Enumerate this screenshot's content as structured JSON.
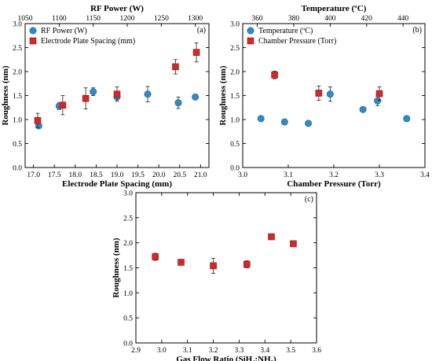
{
  "chart_data": [
    {
      "id": "a",
      "type": "scatter",
      "panel_label": "(a)",
      "ylabel": "Roughness (nm)",
      "ylim": [
        0.0,
        3.0
      ],
      "yticks": [
        0.0,
        0.5,
        1.0,
        1.5,
        2.0,
        2.5,
        3.0
      ],
      "bottom_axis": {
        "label": "Electrode Plate Spacing (mm)",
        "range": [
          16.8,
          21.2
        ],
        "ticks": [
          17.0,
          17.5,
          18.0,
          18.5,
          19.0,
          19.5,
          20.0,
          20.5,
          21.0
        ]
      },
      "top_axis": {
        "label": "RF Power (W)",
        "range": [
          1050,
          1320
        ],
        "ticks": [
          1050,
          1100,
          1150,
          1200,
          1250,
          1300
        ]
      },
      "legend_position": "top-left",
      "series": [
        {
          "name": "RF Power (W)",
          "axis": "top",
          "marker": "circle",
          "color": "#2e8bcb",
          "points": [
            {
              "x": 1070,
              "y": 0.87,
              "err": 0.04
            },
            {
              "x": 1100,
              "y": 1.28,
              "err": 0.07
            },
            {
              "x": 1150,
              "y": 1.58,
              "err": 0.08
            },
            {
              "x": 1185,
              "y": 1.47,
              "err": 0.04
            },
            {
              "x": 1230,
              "y": 1.53,
              "err": 0.16
            },
            {
              "x": 1275,
              "y": 1.35,
              "err": 0.12
            },
            {
              "x": 1300,
              "y": 1.47,
              "err": 0.03
            }
          ]
        },
        {
          "name": "Electrode Plate Spacing (mm)",
          "axis": "bottom",
          "marker": "square",
          "color": "#d62728",
          "points": [
            {
              "x": 17.1,
              "y": 0.98,
              "err": 0.15
            },
            {
              "x": 17.7,
              "y": 1.3,
              "err": 0.2
            },
            {
              "x": 18.25,
              "y": 1.44,
              "err": 0.22
            },
            {
              "x": 19.0,
              "y": 1.53,
              "err": 0.15
            },
            {
              "x": 20.4,
              "y": 2.1,
              "err": 0.15
            },
            {
              "x": 20.9,
              "y": 2.4,
              "err": 0.2
            }
          ]
        }
      ]
    },
    {
      "id": "b",
      "type": "scatter",
      "panel_label": "(b)",
      "ylabel": "Roughness (nm)",
      "ylim": [
        0.0,
        3.0
      ],
      "yticks": [
        0.0,
        0.5,
        1.0,
        1.5,
        2.0,
        2.5,
        3.0
      ],
      "bottom_axis": {
        "label": "Chamber Pressure (Torr)",
        "range": [
          3.0,
          3.4
        ],
        "ticks": [
          3.0,
          3.1,
          3.2,
          3.3,
          3.4
        ]
      },
      "top_axis": {
        "label": "Temperature (ºC)",
        "range": [
          352,
          452
        ],
        "ticks": [
          360,
          380,
          400,
          420,
          440
        ]
      },
      "legend_position": "top-left",
      "series": [
        {
          "name": "Temperature (ºC)",
          "axis": "top",
          "marker": "circle",
          "color": "#2e8bcb",
          "points": [
            {
              "x": 362,
              "y": 1.02,
              "err": 0.03
            },
            {
              "x": 375,
              "y": 0.95,
              "err": 0.05
            },
            {
              "x": 388,
              "y": 0.92,
              "err": 0.03
            },
            {
              "x": 400,
              "y": 1.53,
              "err": 0.15
            },
            {
              "x": 418,
              "y": 1.21,
              "err": 0.04
            },
            {
              "x": 426,
              "y": 1.39,
              "err": 0.1
            },
            {
              "x": 442,
              "y": 1.02,
              "err": 0.04
            }
          ]
        },
        {
          "name": "Chamber Pressure (Torr)",
          "axis": "bottom",
          "marker": "square",
          "color": "#d62728",
          "points": [
            {
              "x": 3.07,
              "y": 1.93,
              "err": 0.08
            },
            {
              "x": 3.167,
              "y": 1.55,
              "err": 0.15
            },
            {
              "x": 3.3,
              "y": 1.54,
              "err": 0.14
            }
          ]
        }
      ]
    },
    {
      "id": "c",
      "type": "scatter",
      "panel_label": "(c)",
      "ylabel": "Roughness (nm)",
      "ylim": [
        0.0,
        3.0
      ],
      "yticks": [
        0.0,
        0.5,
        1.0,
        1.5,
        2.0,
        2.5,
        3.0
      ],
      "bottom_axis": {
        "label": "Gas Flow Ratio (SiH₄:NH₃)",
        "range": [
          2.9,
          3.6
        ],
        "ticks": [
          2.9,
          3.0,
          3.1,
          3.2,
          3.3,
          3.4,
          3.5,
          3.6
        ]
      },
      "series": [
        {
          "name": "",
          "axis": "bottom",
          "marker": "square",
          "color": "#d62728",
          "points": [
            {
              "x": 2.975,
              "y": 1.72,
              "err": 0.07
            },
            {
              "x": 3.075,
              "y": 1.61,
              "err": 0.05
            },
            {
              "x": 3.2,
              "y": 1.54,
              "err": 0.15
            },
            {
              "x": 3.33,
              "y": 1.57,
              "err": 0.07
            },
            {
              "x": 3.425,
              "y": 2.12,
              "err": 0.03
            },
            {
              "x": 3.51,
              "y": 1.98,
              "err": 0.04
            }
          ]
        }
      ]
    }
  ]
}
